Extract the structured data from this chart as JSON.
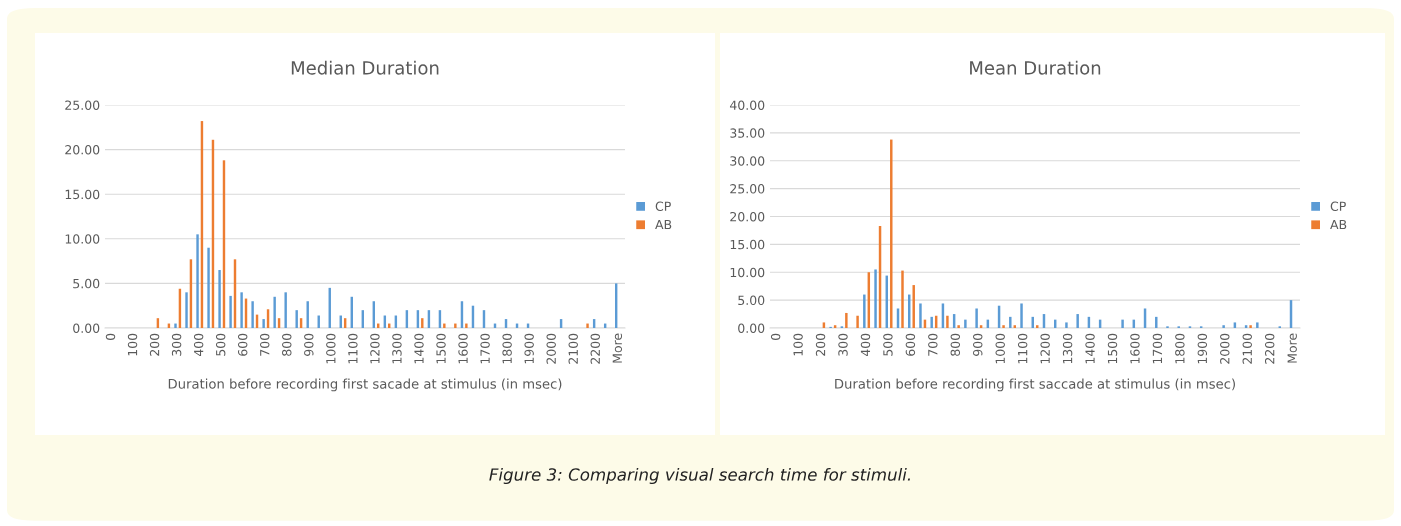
{
  "chart_data": [
    {
      "type": "bar",
      "title": "Median Duration",
      "xlabel": "Duration before recording first sacade at stimulus (in msec)",
      "categories": [
        "0",
        null,
        "100",
        null,
        "200",
        null,
        "300",
        null,
        "400",
        null,
        "500",
        null,
        "600",
        null,
        "700",
        null,
        "800",
        null,
        "900",
        null,
        "1000",
        null,
        "1100",
        null,
        "1200",
        null,
        "1300",
        null,
        "1400",
        null,
        "1500",
        null,
        "1600",
        null,
        "1700",
        null,
        "1800",
        null,
        "1900",
        null,
        "2000",
        null,
        "2100",
        null,
        "2200",
        null,
        "More"
      ],
      "series": [
        {
          "name": "CP",
          "color": "#5b9bd5",
          "values": [
            0,
            0,
            0,
            0,
            0,
            0,
            0.5,
            4.0,
            10.5,
            9.0,
            6.5,
            3.6,
            4.0,
            3.0,
            1.0,
            3.5,
            4.0,
            2.0,
            3.0,
            1.4,
            4.5,
            1.4,
            3.5,
            2.0,
            3.0,
            1.4,
            1.4,
            2.0,
            2.0,
            2.0,
            2.0,
            0,
            3.0,
            2.5,
            2.0,
            0.5,
            1.0,
            0.5,
            0.5,
            0,
            0,
            1.0,
            0,
            0,
            1.0,
            0.5,
            5.0
          ]
        },
        {
          "name": "AB",
          "color": "#ed7d31",
          "values": [
            0,
            0,
            0,
            0,
            1.1,
            0.5,
            4.4,
            7.7,
            23.2,
            21.1,
            18.8,
            7.7,
            3.3,
            1.5,
            2.1,
            1.1,
            0,
            1.1,
            0,
            0,
            0,
            1.1,
            0,
            0,
            0.5,
            0.5,
            0,
            0,
            1.1,
            0,
            0.5,
            0.5,
            0.5,
            0,
            0,
            0,
            0,
            0,
            0,
            0,
            0,
            0,
            0,
            0.5,
            0,
            0,
            0
          ]
        }
      ],
      "ylim": [
        0,
        25
      ],
      "yticks": [
        {
          "value": 0,
          "label": "0.00"
        },
        {
          "value": 5,
          "label": "5.00"
        },
        {
          "value": 10,
          "label": "10.00"
        },
        {
          "value": 15,
          "label": "15.00"
        },
        {
          "value": 20,
          "label": "20.00"
        },
        {
          "value": 25,
          "label": "25.00"
        }
      ],
      "grid": "y",
      "legend": "right",
      "annotations": [
        "Figure 3: Comparing visual search time for stimuli."
      ]
    },
    {
      "type": "bar",
      "title": "Mean Duration",
      "xlabel": "Duration before recording first saccade at stimulus (in msec)",
      "categories": [
        "0",
        null,
        "100",
        null,
        "200",
        null,
        "300",
        null,
        "400",
        null,
        "500",
        null,
        "600",
        null,
        "700",
        null,
        "800",
        null,
        "900",
        null,
        "1000",
        null,
        "1100",
        null,
        "1200",
        null,
        "1300",
        null,
        "1400",
        null,
        "1500",
        null,
        "1600",
        null,
        "1700",
        null,
        "1800",
        null,
        "1900",
        null,
        "2000",
        null,
        "2100",
        null,
        "2200",
        null,
        "More"
      ],
      "series": [
        {
          "name": "CP",
          "color": "#5b9bd5",
          "values": [
            0,
            0,
            0,
            0,
            0,
            0.2,
            0.3,
            0,
            6.0,
            10.5,
            9.4,
            3.5,
            6.0,
            4.4,
            2.0,
            4.4,
            2.5,
            1.5,
            3.5,
            1.5,
            4.0,
            2.0,
            4.4,
            2.0,
            2.5,
            1.5,
            1.0,
            2.5,
            2.0,
            1.5,
            0,
            1.5,
            1.5,
            3.5,
            2.0,
            0.3,
            0.3,
            0.3,
            0.3,
            0,
            0.5,
            1.0,
            0.5,
            1.0,
            0,
            0.3,
            5.0
          ]
        },
        {
          "name": "AB",
          "color": "#ed7d31",
          "values": [
            0,
            0,
            0,
            0,
            1.0,
            0.5,
            2.7,
            2.2,
            10.0,
            18.3,
            33.8,
            10.3,
            7.7,
            1.5,
            2.2,
            2.2,
            0.5,
            0,
            0.5,
            0,
            0.5,
            0.5,
            0,
            0.5,
            0,
            0,
            0,
            0,
            0,
            0,
            0,
            0,
            0,
            0,
            0,
            0,
            0,
            0,
            0,
            0,
            0,
            0,
            0.5,
            0,
            0,
            0,
            0
          ]
        }
      ],
      "ylim": [
        0,
        40
      ],
      "yticks": [
        {
          "value": 0,
          "label": "0.00"
        },
        {
          "value": 5,
          "label": "5.00"
        },
        {
          "value": 10,
          "label": "10.00"
        },
        {
          "value": 15,
          "label": "15.00"
        },
        {
          "value": 20,
          "label": "20.00"
        },
        {
          "value": 25,
          "label": "25.00"
        },
        {
          "value": 30,
          "label": "30.00"
        },
        {
          "value": 35,
          "label": "35.00"
        },
        {
          "value": 40,
          "label": "40.00"
        }
      ],
      "grid": "y",
      "legend": "right"
    }
  ]
}
